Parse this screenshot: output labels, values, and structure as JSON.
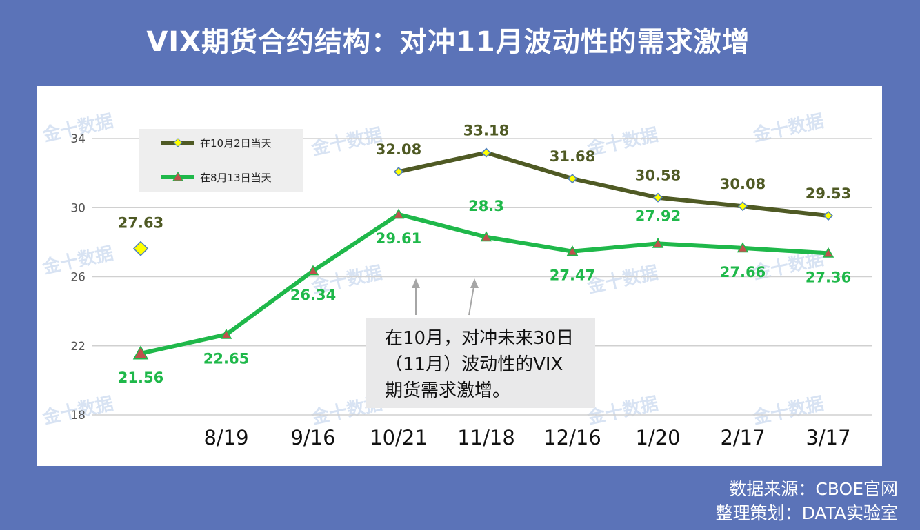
{
  "title": "VIX期货合约结构：对冲11月波动性的需求激增",
  "footer": {
    "source": "数据来源：CBOE官网",
    "editor": "整理策划：DATA实验室"
  },
  "annotation": {
    "lines": [
      "在10月，对冲未来30日",
      "（11月）波动性的VIX",
      "期货需求激增。"
    ]
  },
  "watermark": "金十数据",
  "colors": {
    "background": "#5b73b8",
    "series_oct": "#4f5a24",
    "series_aug": "#1fb84a",
    "marker_diamond": "#ffff00",
    "marker_triangle": "#c0504d",
    "grid": "#d0d0d0"
  },
  "chart_data": {
    "type": "line",
    "categories": [
      "",
      "8/19",
      "9/16",
      "10/21",
      "11/18",
      "12/16",
      "1/20",
      "2/17",
      "3/17"
    ],
    "ylim": [
      18,
      34
    ],
    "yticks": [
      18,
      22,
      26,
      30,
      34
    ],
    "grid": true,
    "legend_position": "top-left",
    "series": [
      {
        "name": "在10月2日当天",
        "color": "#4f5a24",
        "marker": "diamond",
        "values": [
          27.63,
          null,
          null,
          32.08,
          33.18,
          31.68,
          30.58,
          30.08,
          29.53
        ],
        "labels": [
          "27.63",
          "",
          "",
          "32.08",
          "33.18",
          "31.68",
          "30.58",
          "30.08",
          "29.53"
        ]
      },
      {
        "name": "在8月13日当天",
        "color": "#1fb84a",
        "marker": "triangle",
        "values": [
          21.56,
          22.65,
          26.34,
          29.61,
          28.3,
          27.47,
          27.92,
          27.66,
          27.36
        ],
        "labels": [
          "21.56",
          "22.65",
          "26.34",
          "29.61",
          "28.3",
          "27.47",
          "27.92",
          "27.66",
          "27.36"
        ]
      }
    ]
  }
}
